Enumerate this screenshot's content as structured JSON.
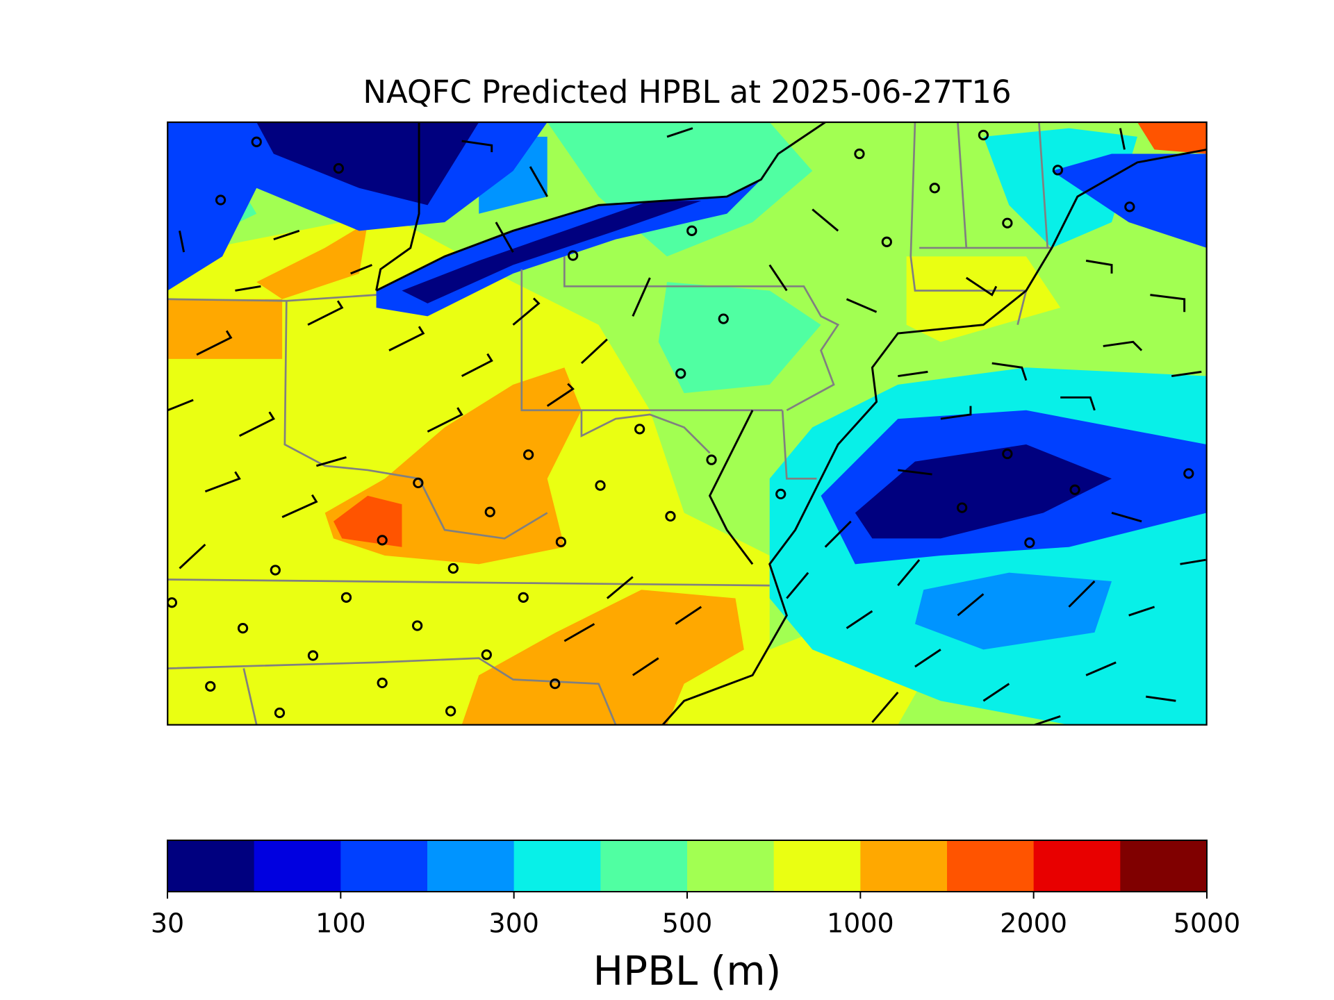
{
  "title": "NAQFC Predicted HPBL at 2025-06-27T16",
  "colorbar": {
    "label": "HPBL (m)",
    "colors": [
      "#00007f",
      "#0000e0",
      "#0040ff",
      "#0094ff",
      "#08f0e8",
      "#50ffa2",
      "#a2ff52",
      "#eaff12",
      "#ffa800",
      "#ff5400",
      "#e80000",
      "#800000"
    ],
    "ticks": [
      30,
      100,
      300,
      500,
      1000,
      2000,
      5000
    ]
  }
}
